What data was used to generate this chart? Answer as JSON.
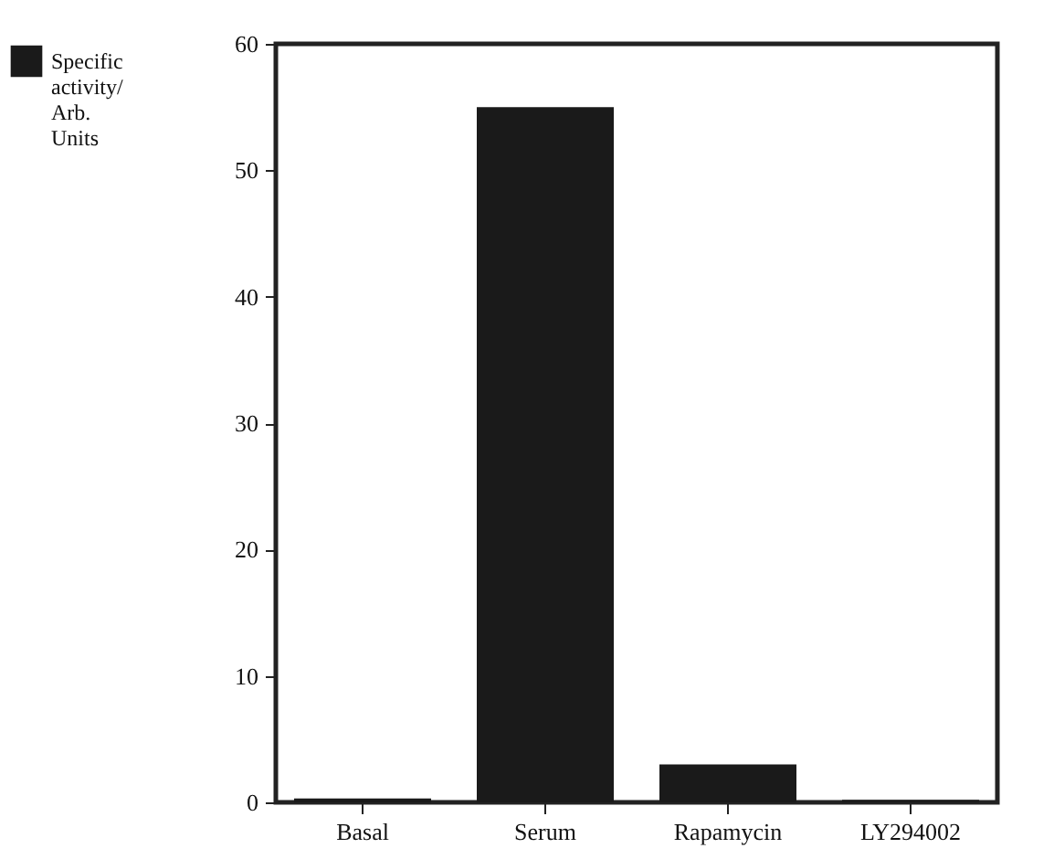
{
  "chart_data": {
    "type": "bar",
    "categories": [
      "Basal",
      "Serum",
      "Rapamycin",
      "LY294002"
    ],
    "series": [
      {
        "name": "Specific activity/ Arb. Units",
        "color": "#1a1a1a",
        "values": [
          0.3,
          55,
          3,
          0.2
        ]
      }
    ],
    "ylim": [
      0,
      60
    ],
    "yticks": [
      0,
      10,
      20,
      30,
      40,
      50,
      60
    ],
    "legend": "left"
  }
}
